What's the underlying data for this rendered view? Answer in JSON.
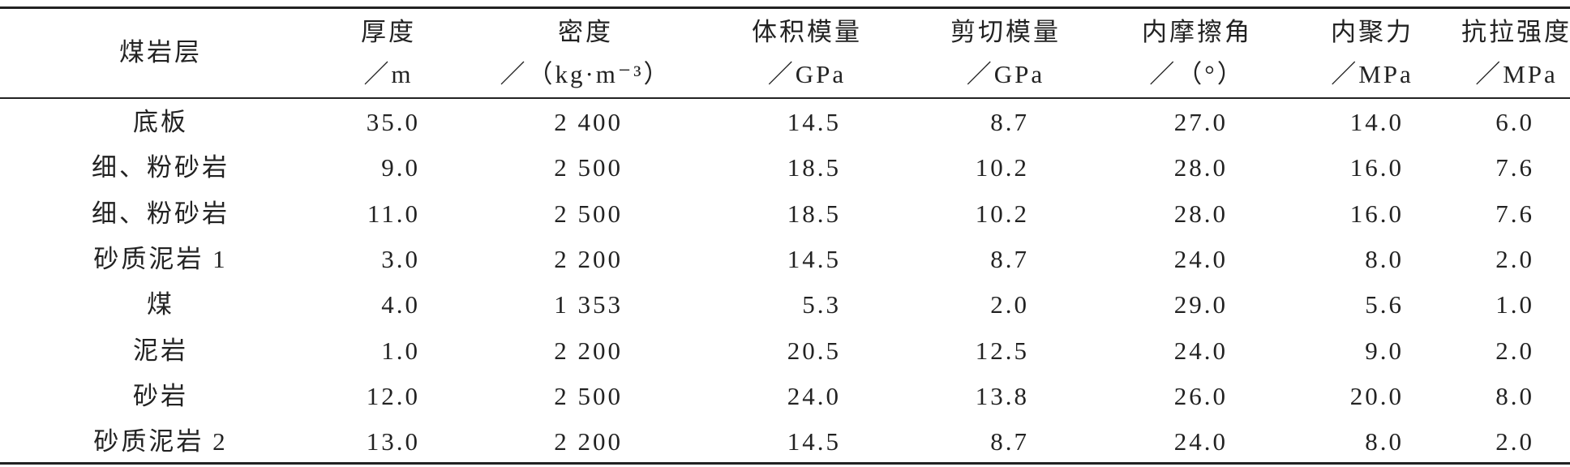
{
  "table": {
    "header": [
      [
        "煤岩层"
      ],
      [
        "厚度",
        "／m"
      ],
      [
        "密度",
        "／（kg·m⁻³）"
      ],
      [
        "体积模量",
        "／GPa"
      ],
      [
        "剪切模量",
        "／GPa"
      ],
      [
        "内摩擦角",
        "／（°）"
      ],
      [
        "内聚力",
        "／MPa"
      ],
      [
        "抗拉强度",
        "／MPa"
      ]
    ],
    "rows": [
      [
        "底板",
        "35.0",
        "2 400",
        "14.5",
        "8.7",
        "27.0",
        "14.0",
        "6.0"
      ],
      [
        "细、粉砂岩",
        "9.0",
        "2 500",
        "18.5",
        "10.2",
        "28.0",
        "16.0",
        "7.6"
      ],
      [
        "细、粉砂岩",
        "11.0",
        "2 500",
        "18.5",
        "10.2",
        "28.0",
        "16.0",
        "7.6"
      ],
      [
        "砂质泥岩 1",
        "3.0",
        "2 200",
        "14.5",
        "8.7",
        "24.0",
        "8.0",
        "2.0"
      ],
      [
        "煤",
        "4.0",
        "1 353",
        "5.3",
        "2.0",
        "29.0",
        "5.6",
        "1.0"
      ],
      [
        "泥岩",
        "1.0",
        "2 200",
        "20.5",
        "12.5",
        "24.0",
        "9.0",
        "2.0"
      ],
      [
        "砂岩",
        "12.0",
        "2 500",
        "24.0",
        "13.8",
        "26.0",
        "20.0",
        "8.0"
      ],
      [
        "砂质泥岩 2",
        "13.0",
        "2 200",
        "14.5",
        "8.7",
        "24.0",
        "8.0",
        "2.0"
      ]
    ]
  }
}
